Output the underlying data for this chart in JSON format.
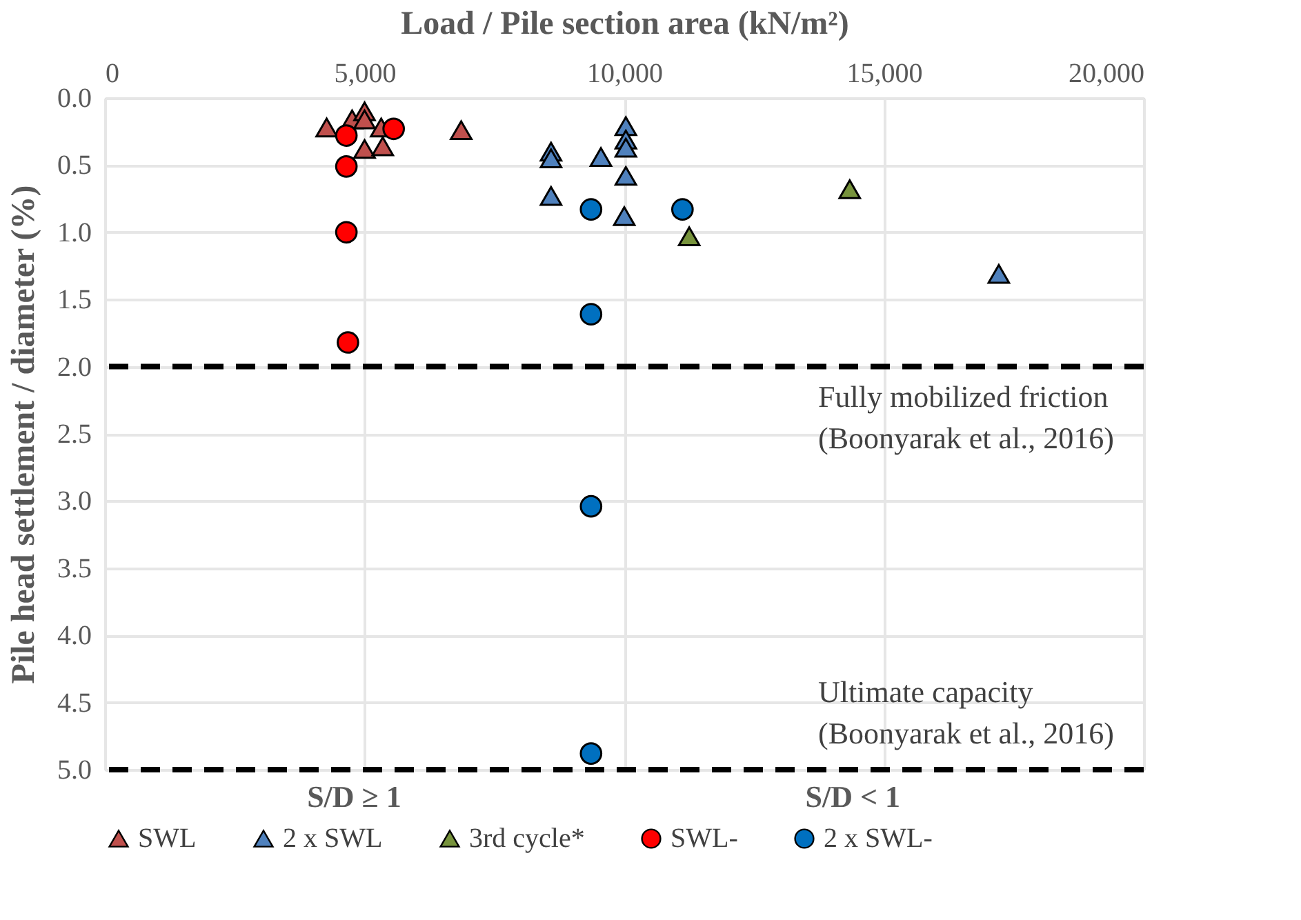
{
  "chart_data": {
    "type": "scatter",
    "xlabel": "Load / Pile section area (kN/m²)",
    "ylabel": "Pile head settlement / diameter (%)",
    "xlim": [
      0,
      20000
    ],
    "xticks": [
      {
        "value": 0,
        "label": "0"
      },
      {
        "value": 5000,
        "label": "5,000"
      },
      {
        "value": 10000,
        "label": "10,000"
      },
      {
        "value": 15000,
        "label": "15,000"
      },
      {
        "value": 20000,
        "label": "20,000"
      }
    ],
    "ylim": [
      5.0,
      0.0
    ],
    "yticks": [
      {
        "value": 0,
        "label": "0.0"
      },
      {
        "value": 0.5,
        "label": "0.5"
      },
      {
        "value": 1,
        "label": "1.0"
      },
      {
        "value": 1.5,
        "label": "1.5"
      },
      {
        "value": 2,
        "label": "2.0"
      },
      {
        "value": 2.5,
        "label": "2.5"
      },
      {
        "value": 3,
        "label": "3.0"
      },
      {
        "value": 3.5,
        "label": "3.5"
      },
      {
        "value": 4,
        "label": "4.0"
      },
      {
        "value": 4.5,
        "label": "4.5"
      },
      {
        "value": 5,
        "label": "5.0"
      }
    ],
    "grid": true,
    "legend": "bottom",
    "series": [
      {
        "name": "SWL",
        "color": "#c0504d",
        "marker": "triangle",
        "x": [
          4270,
          4760,
          5000,
          5000,
          5320,
          5000,
          5350,
          6860
        ],
        "values": [
          0.22,
          0.16,
          0.1,
          0.16,
          0.22,
          0.38,
          0.36,
          0.24
        ]
      },
      {
        "name": "2 x SWL",
        "color": "#4f81bd",
        "marker": "triangle",
        "x": [
          8590,
          8590,
          9550,
          10030,
          10030,
          10030,
          10030,
          8590,
          10000,
          17210
        ],
        "values": [
          0.4,
          0.45,
          0.44,
          0.21,
          0.31,
          0.37,
          0.58,
          0.73,
          0.88,
          1.31
        ]
      },
      {
        "name": "3rd cycle*",
        "color": "#77933c",
        "marker": "triangle",
        "x": [
          11250,
          14340
        ],
        "values": [
          1.03,
          0.68
        ]
      },
      {
        "name": "SWL-",
        "color": "#ff0000",
        "marker": "circle",
        "x": [
          4650,
          5560,
          4650,
          4650,
          4680
        ],
        "values": [
          0.28,
          0.23,
          0.51,
          1.0,
          1.82
        ]
      },
      {
        "name": "2 x SWL-",
        "color": "#0070c0",
        "marker": "circle",
        "x": [
          9360,
          11120,
          9360,
          9360,
          9360
        ],
        "values": [
          0.83,
          0.83,
          1.61,
          3.04,
          4.88
        ]
      }
    ],
    "ref_lines": [
      {
        "axis": "y",
        "value": 2.0,
        "label": "Fully mobilized friction\n(Boonyarak et al., 2016)",
        "color": "#000000",
        "line_style": "dashed"
      },
      {
        "axis": "y",
        "value": 5.0,
        "label": "Ultimate capacity\n(Boonyarak et al., 2016)",
        "color": "#000000",
        "line_style": "dashed"
      }
    ],
    "annotations": [
      "S/D ≥ 1",
      "S/D < 1"
    ]
  }
}
